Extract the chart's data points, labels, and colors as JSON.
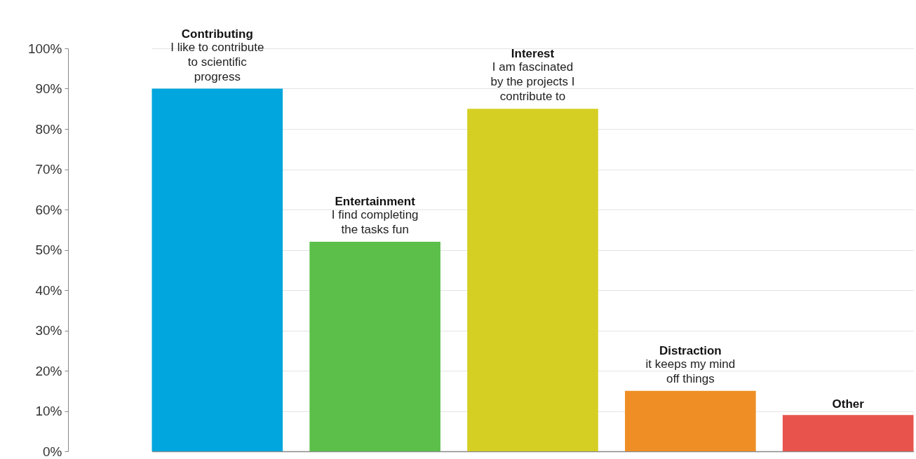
{
  "chart_data": {
    "type": "bar",
    "categories": [
      "Contributing",
      "Entertainment",
      "Interest",
      "Distraction",
      "Other"
    ],
    "values": [
      90,
      52,
      85,
      15,
      9
    ],
    "colors": [
      "#00a6dd",
      "#5bbf4a",
      "#d4cf22",
      "#ef8e25",
      "#e8544c"
    ],
    "annotations": [
      {
        "text": "I like to contribute\nto scientific\nprogress",
        "x": "Contributing",
        "y": 90
      },
      {
        "text": "I find completing\nthe tasks fun",
        "x": "Entertainment",
        "y": 52
      },
      {
        "text": "I am fascinated\nby the projects I\ncontribute to",
        "x": "Interest",
        "y": 85
      },
      {
        "text": "it keeps my mind\noff things",
        "x": "Distraction",
        "y": 15
      }
    ],
    "ylim": [
      0,
      100
    ],
    "yticks": [
      {
        "value": 0,
        "label": "0%"
      },
      {
        "value": 10,
        "label": "10%"
      },
      {
        "value": 20,
        "label": "20%"
      },
      {
        "value": 30,
        "label": "30%"
      },
      {
        "value": 40,
        "label": "40%"
      },
      {
        "value": 50,
        "label": "50%"
      },
      {
        "value": 60,
        "label": "60%"
      },
      {
        "value": 70,
        "label": "70%"
      },
      {
        "value": 80,
        "label": "80%"
      },
      {
        "value": 90,
        "label": "90%"
      },
      {
        "value": 100,
        "label": "100%"
      }
    ],
    "grid": "y",
    "tick_labels": "y"
  }
}
